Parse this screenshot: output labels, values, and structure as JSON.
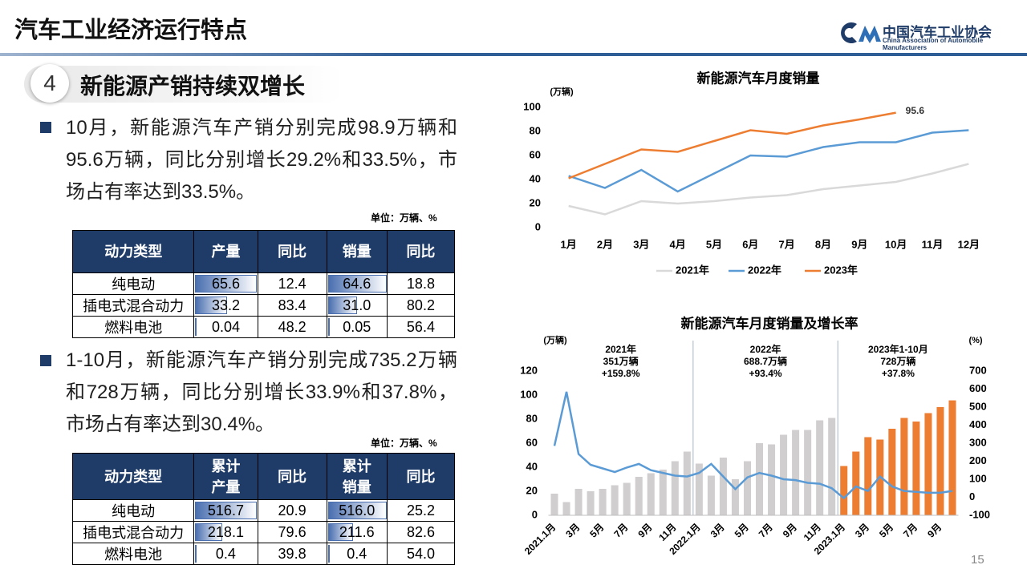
{
  "header": {
    "title": "汽车工业经济运行特点",
    "logo_cn": "中国汽车工业协会",
    "logo_en": "China Association of Automobile Manufacturers"
  },
  "section": {
    "number": "4",
    "title": "新能源产销持续双增长"
  },
  "bullets": [
    "10月，新能源汽车产销分别完成98.9万辆和95.6万辆，同比分别增长29.2%和33.5%，市场占有率达到33.5%。",
    "1-10月，新能源汽车产销分别完成735.2万辆和728万辆，同比分别增长33.9%和37.8%，市场占有率达到30.4%。"
  ],
  "tables": [
    {
      "unit": "单位：万辆、%",
      "columns": [
        "动力类型",
        "产量",
        "同比",
        "销量",
        "同比"
      ],
      "databar_columns": [
        1,
        3
      ],
      "rows": [
        [
          "纯电动",
          "65.6",
          "12.4",
          "64.6",
          "18.8"
        ],
        [
          "插电式混合动力",
          "33.2",
          "83.4",
          "31.0",
          "80.2"
        ],
        [
          "燃料电池",
          "0.04",
          "48.2",
          "0.05",
          "56.4"
        ]
      ]
    },
    {
      "unit": "单位：万辆、%",
      "columns": [
        "动力类型",
        "累计\n产量",
        "同比",
        "累计\n销量",
        "同比"
      ],
      "databar_columns": [
        1,
        3
      ],
      "rows": [
        [
          "纯电动",
          "516.7",
          "20.9",
          "516.0",
          "25.2"
        ],
        [
          "插电式混合动力",
          "218.1",
          "79.6",
          "211.6",
          "82.6"
        ],
        [
          "燃料电池",
          "0.4",
          "39.8",
          "0.4",
          "54.0"
        ]
      ]
    }
  ],
  "page_number": "15",
  "chart_data": [
    {
      "type": "line",
      "title": "新能源汽车月度销量",
      "y_label": "(万辆)",
      "categories": [
        "1月",
        "2月",
        "3月",
        "4月",
        "5月",
        "6月",
        "7月",
        "8月",
        "9月",
        "10月",
        "11月",
        "12月"
      ],
      "series": [
        {
          "name": "2021年",
          "color": "#d9d9d9",
          "values": [
            18,
            11,
            22,
            20,
            22,
            25,
            27,
            32,
            35,
            38,
            45,
            53
          ]
        },
        {
          "name": "2022年",
          "color": "#5b9bd5",
          "values": [
            43,
            33,
            48,
            30,
            45,
            60,
            59,
            67,
            71,
            71,
            79,
            81
          ]
        },
        {
          "name": "2023年",
          "color": "#ed7d31",
          "values": [
            41,
            53,
            65,
            63,
            72,
            81,
            78,
            85,
            90,
            95.6,
            null,
            null
          ],
          "label_last": true
        }
      ],
      "ylim": [
        0,
        100
      ],
      "yticks": [
        0,
        20,
        40,
        60,
        80,
        100
      ],
      "legend": "bottom"
    },
    {
      "type": "bar_line",
      "title": "新能源汽车月度销量及增长率",
      "y_label": "(万辆)",
      "y2_label": "(%)",
      "categories": [
        "2021.1月",
        null,
        "3月",
        null,
        "5月",
        null,
        "7月",
        null,
        "9月",
        null,
        "11月",
        null,
        "2022.1月",
        null,
        "3月",
        null,
        "5月",
        null,
        "7月",
        null,
        "9月",
        null,
        "11月",
        null,
        "2023.1月",
        null,
        "3月",
        null,
        "5月",
        null,
        "7月",
        null,
        "9月",
        null
      ],
      "series": [
        {
          "type": "bar",
          "color": "#d0cece",
          "values": [
            18,
            11,
            22,
            20,
            22,
            25,
            27,
            32,
            35,
            38,
            45,
            53,
            43,
            33,
            48,
            30,
            45,
            60,
            59,
            67,
            71,
            71,
            79,
            81,
            null,
            null,
            null,
            null,
            null,
            null,
            null,
            null,
            null,
            null
          ]
        },
        {
          "type": "bar",
          "color": "#ed7d31",
          "values": [
            null,
            null,
            null,
            null,
            null,
            null,
            null,
            null,
            null,
            null,
            null,
            null,
            null,
            null,
            null,
            null,
            null,
            null,
            null,
            null,
            null,
            null,
            null,
            null,
            41,
            53,
            65,
            63,
            72,
            81,
            78,
            85,
            90,
            95.6
          ]
        },
        {
          "type": "line",
          "axis": "y2",
          "color": "#5b9bd5",
          "values": [
            285,
            585,
            240,
            180,
            160,
            140,
            165,
            185,
            150,
            135,
            120,
            115,
            135,
            185,
            115,
            45,
            110,
            135,
            120,
            100,
            95,
            80,
            75,
            50,
            -5,
            60,
            35,
            115,
            60,
            35,
            30,
            25,
            25,
            35
          ]
        }
      ],
      "ylim": [
        0,
        120
      ],
      "yticks": [
        0,
        20,
        40,
        60,
        80,
        100,
        120
      ],
      "y2lim": [
        -100,
        700
      ],
      "y2ticks": [
        -100,
        0,
        100,
        200,
        300,
        400,
        500,
        600,
        700
      ],
      "annotations": [
        [
          "2021年",
          "351万辆",
          "+159.8%"
        ],
        [
          "2022年",
          "688.7万辆",
          "+93.4%"
        ],
        [
          "2023年1-10月",
          "728万辆",
          "+37.8%"
        ]
      ]
    }
  ]
}
